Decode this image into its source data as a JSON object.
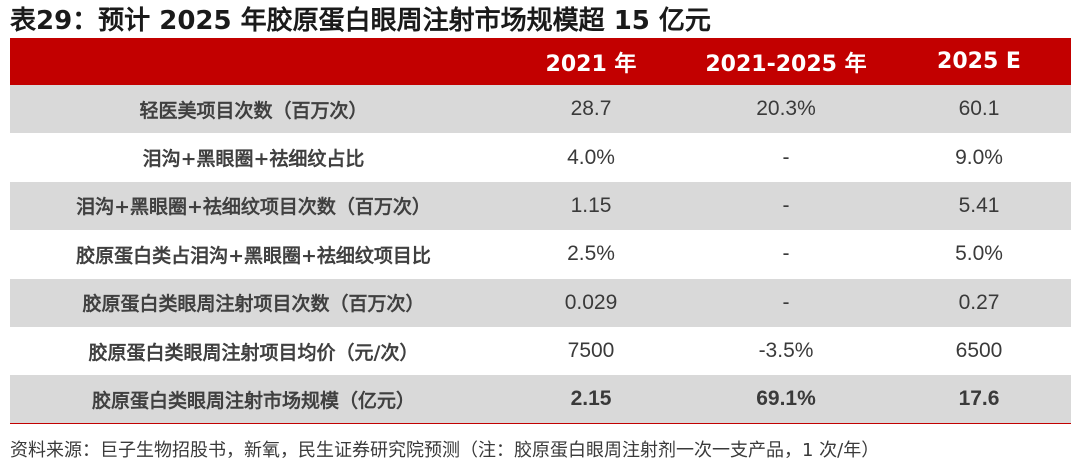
{
  "title": "表29：预计 2025 年胶原蛋白眼周注射市场规模超 15 亿元",
  "header": {
    "col0": "",
    "col1": "2021 年",
    "col2": "2021-2025 年",
    "col3": "2025 E"
  },
  "rows": [
    {
      "label": "轻医美项目次数（百万次）",
      "v2021": "28.7",
      "growth": "20.3%",
      "v2025": "60.1"
    },
    {
      "label": "泪沟+黑眼圈+祛细纹占比",
      "v2021": "4.0%",
      "growth": "-",
      "v2025": "9.0%"
    },
    {
      "label": "泪沟+黑眼圈+祛细纹项目次数（百万次）",
      "v2021": "1.15",
      "growth": "-",
      "v2025": "5.41"
    },
    {
      "label": "胶原蛋白类占泪沟+黑眼圈+祛细纹项目比",
      "v2021": "2.5%",
      "growth": "-",
      "v2025": "5.0%"
    },
    {
      "label": "胶原蛋白类眼周注射项目次数（百万次）",
      "v2021": "0.029",
      "growth": "-",
      "v2025": "0.27"
    },
    {
      "label": "胶原蛋白类眼周注射项目均价（元/次）",
      "v2021": "7500",
      "growth": "-3.5%",
      "v2025": "6500"
    },
    {
      "label": "胶原蛋白类眼周注射市场规模（亿元）",
      "v2021": "2.15",
      "growth": "69.1%",
      "v2025": "17.6"
    }
  ],
  "source": "资料来源：巨子生物招股书，新氧，民生证券研究院预测（注：胶原蛋白眼周注射剂一次一支产品，1 次/年）",
  "colors": {
    "header_bg": "#c20000",
    "shade_bg": "#d9d9d9"
  }
}
